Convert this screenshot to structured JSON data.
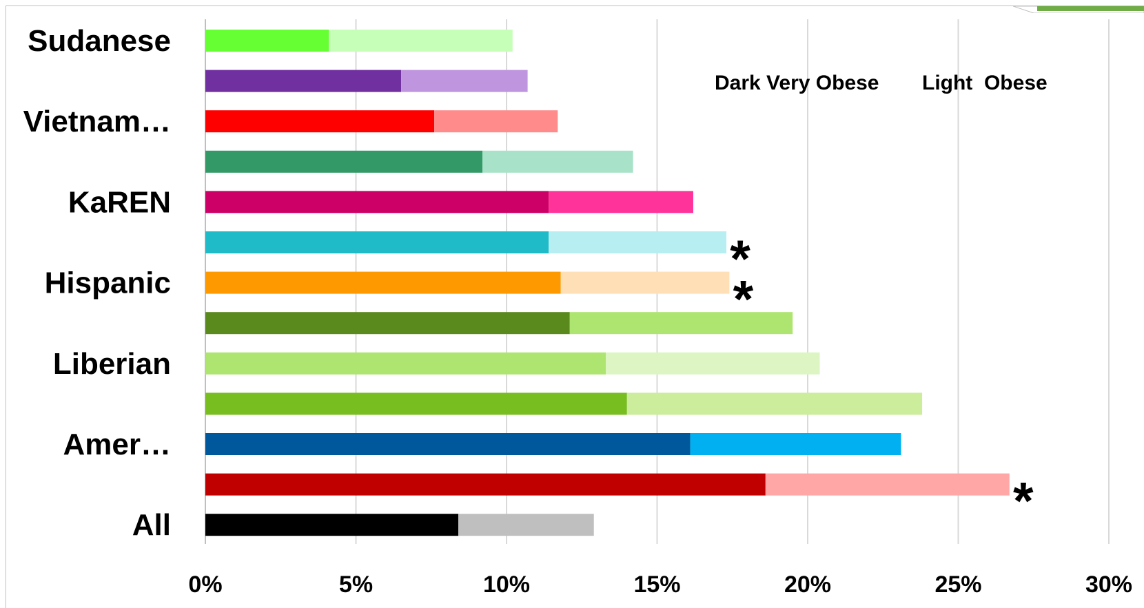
{
  "chart_data": {
    "type": "bar",
    "orientation": "horizontal",
    "stacked": true,
    "categories": [
      "Sudanese",
      "",
      "Vietnam…",
      "",
      "KaREN",
      "",
      "Hispanic",
      "",
      "Liberian",
      "",
      "Amer…",
      "",
      "All"
    ],
    "series": [
      {
        "name": "Dark Very Obese",
        "values": [
          4.1,
          6.5,
          7.6,
          9.2,
          11.4,
          11.4,
          11.8,
          12.1,
          13.3,
          14.0,
          16.1,
          18.6,
          8.4
        ]
      },
      {
        "name": "Light Obese",
        "values": [
          6.1,
          4.2,
          4.1,
          5.0,
          4.8,
          5.9,
          5.6,
          7.4,
          7.1,
          9.8,
          7.0,
          8.1,
          4.5
        ]
      }
    ],
    "colors": {
      "dark": [
        "#66ff33",
        "#7030a0",
        "#ff0000",
        "#339966",
        "#cc0066",
        "#20bbc8",
        "#ff9900",
        "#5a8a1e",
        "#aee570",
        "#78be20",
        "#00589c",
        "#c00000",
        "#000000"
      ],
      "light": [
        "#c6ffb8",
        "#bf95e0",
        "#ff8b8b",
        "#a8e2c8",
        "#ff3399",
        "#b6eef2",
        "#ffdfb5",
        "#aee570",
        "#ddf5c3",
        "#cbed9c",
        "#00b0f0",
        "#ffa6a6",
        "#bfbfbf"
      ]
    },
    "markers": [
      "",
      "",
      "",
      "",
      "",
      "*",
      "*",
      "",
      "",
      "",
      "",
      "*",
      ""
    ],
    "legend": {
      "dark_label": "Dark Very Obese",
      "light_label": "Light  Obese",
      "position": "top-right"
    },
    "xlim": [
      0,
      30
    ],
    "xticks": [
      0,
      5,
      10,
      15,
      20,
      25,
      30
    ],
    "xtick_labels": [
      "0%",
      "5%",
      "10%",
      "15%",
      "20%",
      "25%",
      "30%"
    ],
    "grid": true,
    "title": "",
    "xlabel": "",
    "ylabel": ""
  }
}
